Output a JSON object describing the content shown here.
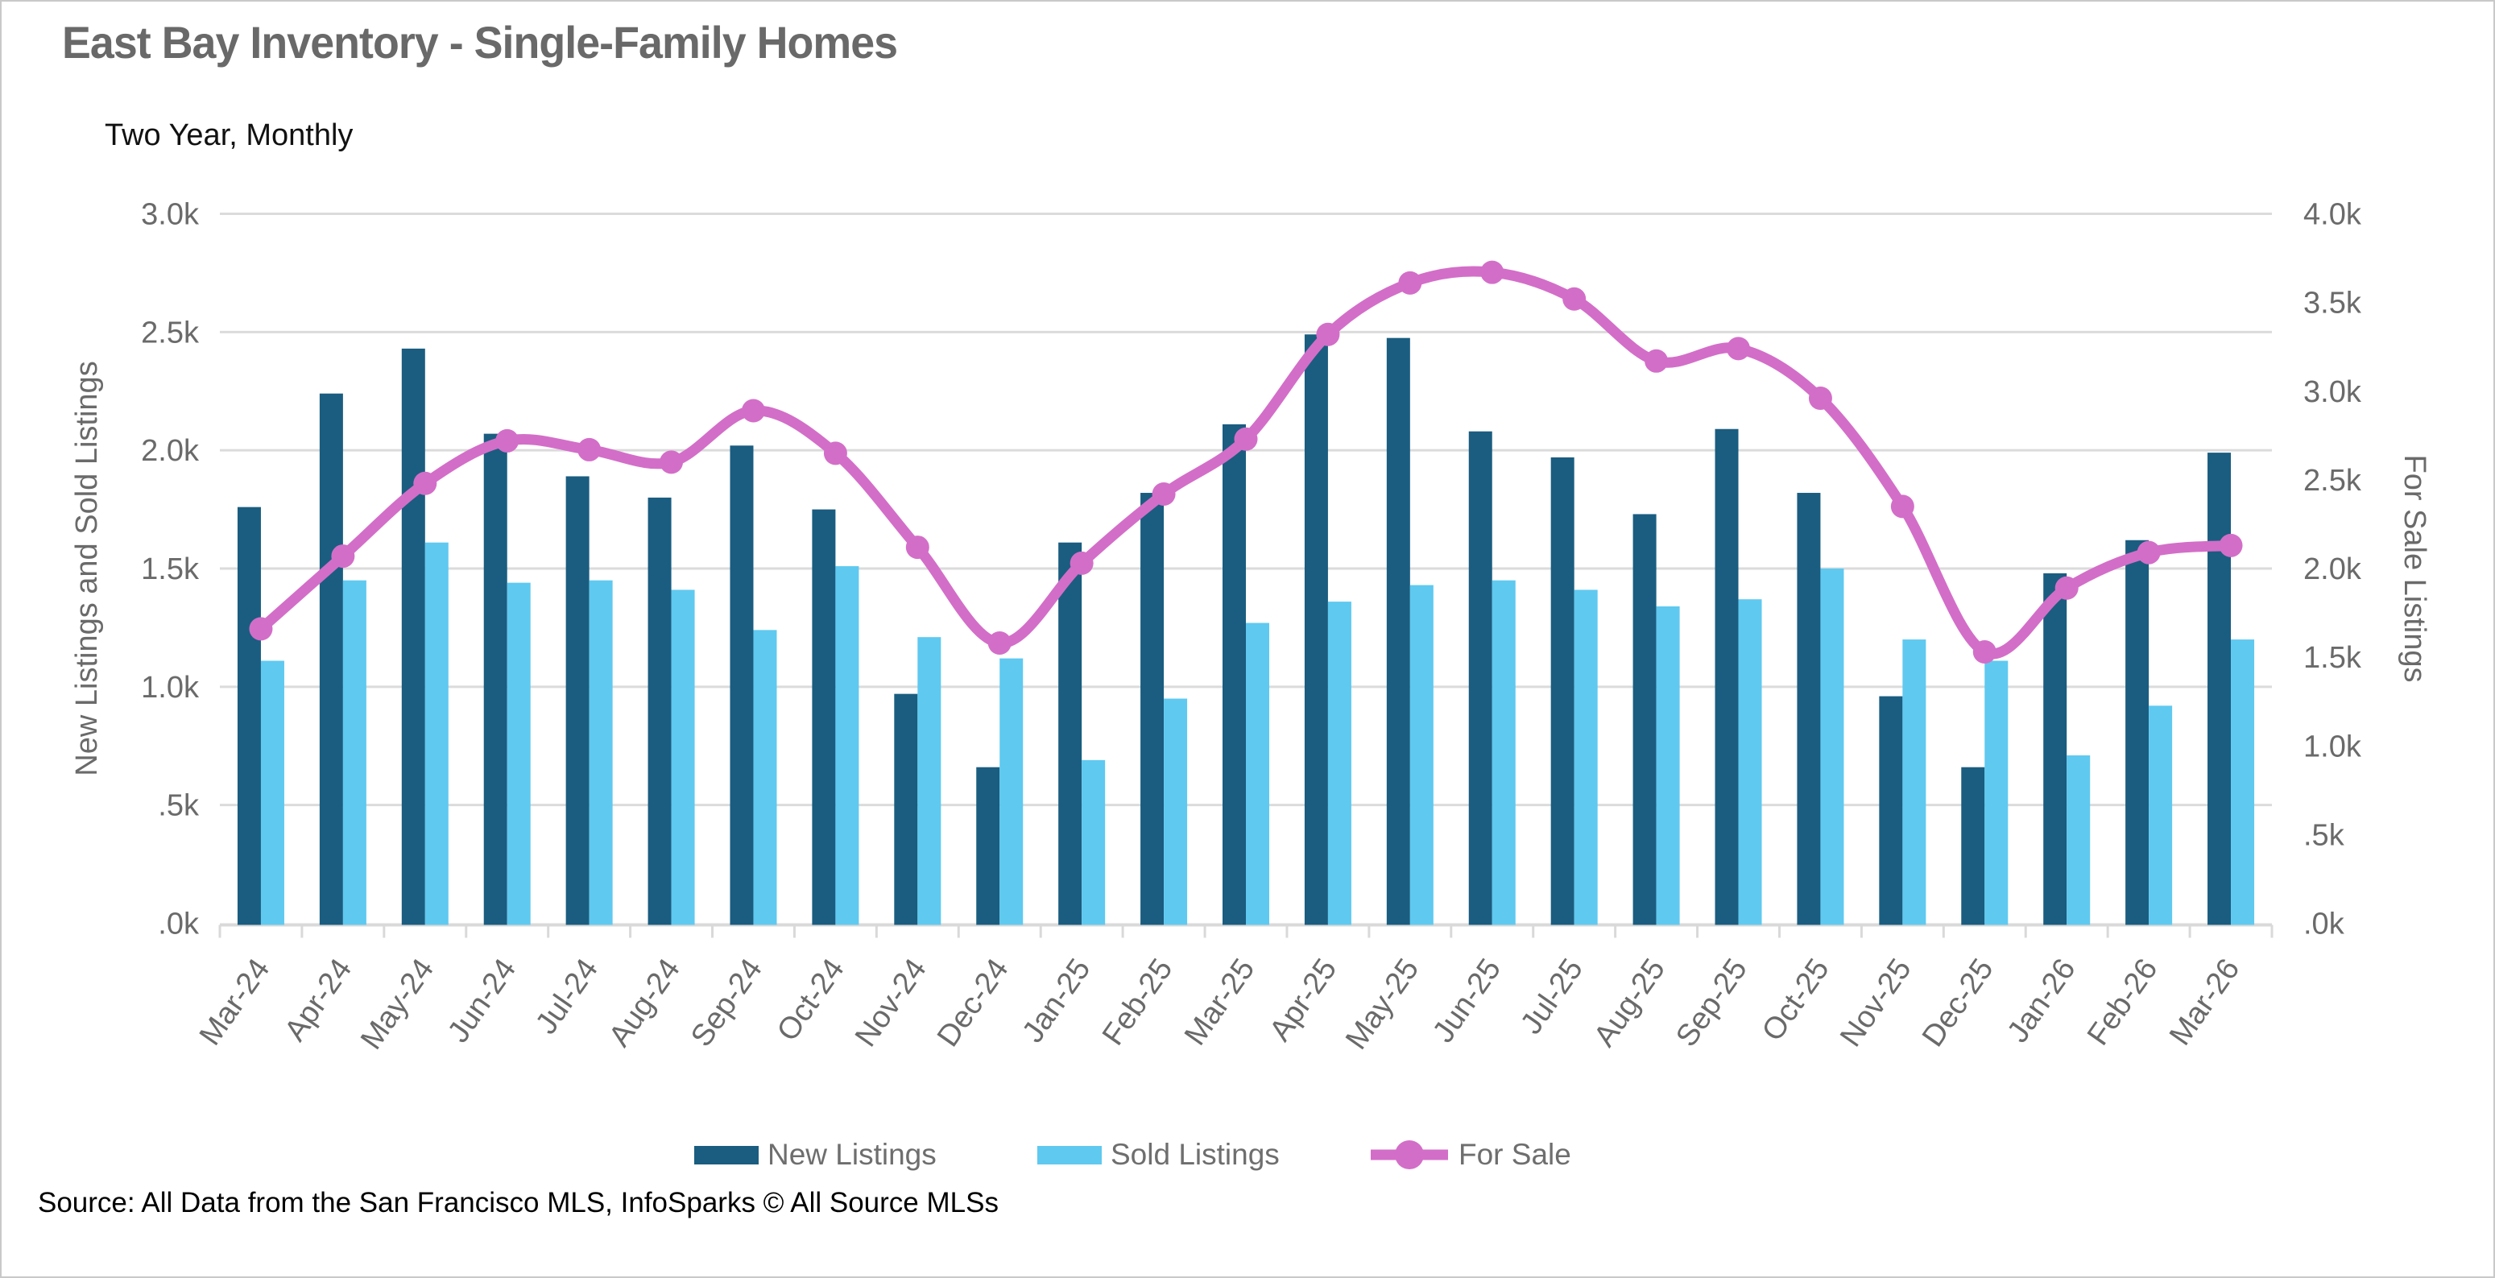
{
  "header": {
    "title": "East Bay Inventory - Single-Family Homes",
    "subtitle": "Two Year, Monthly"
  },
  "footer": {
    "source": "Source: All Data from the San Francisco MLS, InfoSparks © All Source MLSs"
  },
  "legend": {
    "items": [
      {
        "label": "New Listings",
        "type": "swatch",
        "color": "#1A5D80"
      },
      {
        "label": "Sold Listings",
        "type": "swatch",
        "color": "#5FC9F0"
      },
      {
        "label": "For Sale",
        "type": "line-marker",
        "color": "#D36EC8"
      }
    ]
  },
  "colors": {
    "new_listings": "#1A5D80",
    "sold_listings": "#5FC9F0",
    "for_sale": "#D36EC8",
    "gridline": "#DBDBDB",
    "axis_line": "#D9D9D9",
    "axis_text": "#6A6A6A"
  },
  "chart_data": {
    "type": "bar",
    "subtype": "combo-bar-line",
    "title": "East Bay Inventory - Single-Family Homes",
    "subtitle": "Two Year, Monthly",
    "grid": true,
    "legend_position": "bottom",
    "categories": [
      "Mar-24",
      "Apr-24",
      "May-24",
      "Jun-24",
      "Jul-24",
      "Aug-24",
      "Sep-24",
      "Oct-24",
      "Nov-24",
      "Dec-24",
      "Jan-25",
      "Feb-25",
      "Mar-25",
      "Apr-25",
      "May-25",
      "Jun-25",
      "Jul-25",
      "Aug-25",
      "Sep-25",
      "Oct-25",
      "Nov-25",
      "Dec-25",
      "Jan-26",
      "Feb-26",
      "Mar-26"
    ],
    "series": [
      {
        "name": "New Listings",
        "type": "bar",
        "axis": "left",
        "color": "#1A5D80",
        "values": [
          1760,
          2240,
          2430,
          2070,
          1890,
          1800,
          2020,
          1750,
          970,
          660,
          1610,
          1820,
          2110,
          2490,
          2475,
          2080,
          1970,
          1730,
          2090,
          1820,
          960,
          660,
          1480,
          1620,
          1990
        ]
      },
      {
        "name": "Sold Listings",
        "type": "bar",
        "axis": "left",
        "color": "#5FC9F0",
        "values": [
          1110,
          1450,
          1610,
          1440,
          1450,
          1410,
          1240,
          1510,
          1210,
          1120,
          690,
          950,
          1270,
          1360,
          1430,
          1450,
          1410,
          1340,
          1370,
          1500,
          1200,
          1110,
          710,
          920,
          1200
        ]
      },
      {
        "name": "For Sale",
        "type": "line",
        "axis": "right",
        "color": "#D36EC8",
        "values": [
          1660,
          2070,
          2480,
          2720,
          2670,
          2600,
          2890,
          2650,
          2120,
          1580,
          2030,
          2420,
          2730,
          3320,
          3610,
          3670,
          3520,
          3170,
          3240,
          2960,
          2350,
          1530,
          1890,
          2090,
          2130
        ]
      }
    ],
    "left_axis": {
      "title": "New Listings and Sold Listings",
      "min": 0,
      "max": 3000,
      "step": 500,
      "tick_labels": [
        ".0k",
        ".5k",
        "1.0k",
        "1.5k",
        "2.0k",
        "2.5k",
        "3.0k"
      ]
    },
    "right_axis": {
      "title": "For Sale Listings",
      "min": 0,
      "max": 4000,
      "step": 500,
      "tick_labels": [
        ".0k",
        ".5k",
        "1.0k",
        "1.5k",
        "2.0k",
        "2.5k",
        "3.0k",
        "3.5k",
        "4.0k"
      ]
    }
  }
}
